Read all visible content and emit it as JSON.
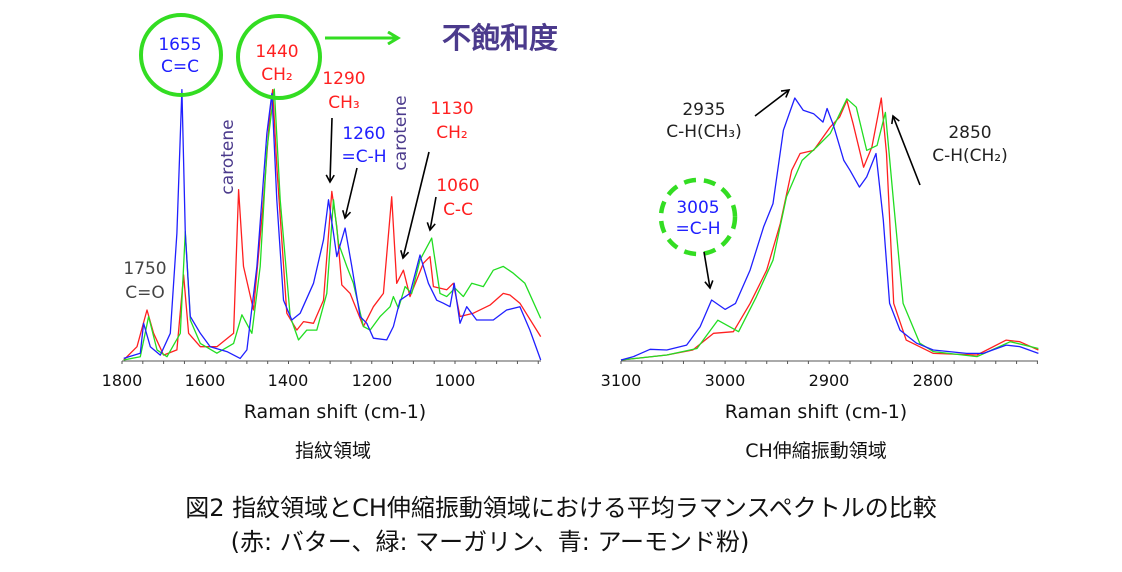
{
  "colors": {
    "butter": "#ff2020",
    "margarine": "#22dd22",
    "almond": "#2020ff",
    "purple": "#4b3a8c",
    "circle": "#33dd22"
  },
  "header": {
    "unsaturation": "不飽和度"
  },
  "caption": {
    "line1": "図2 指紋領域とCH伸縮振動領域における平均ラマンスペクトルの比較",
    "line2": "(赤: バター、緑: マーガリン、青: アーモンド粉)"
  },
  "chart_data": [
    {
      "type": "line",
      "title": "指紋領域",
      "xlabel": "Raman shift (cm-1)",
      "ylabel": "",
      "xlim": [
        1800,
        794
      ],
      "ylim": [
        0,
        100
      ],
      "xticks": [
        "1800",
        "1600",
        "1400",
        "1200",
        "1000"
      ],
      "grid": false,
      "annotations": [
        {
          "value": "1655",
          "assign": "C=C",
          "color": "blue"
        },
        {
          "value": "1440",
          "assign": "CH₂",
          "color": "red"
        },
        {
          "value": "1290",
          "assign": "CH₃",
          "color": "red"
        },
        {
          "value": "1260",
          "assign": "=C-H",
          "color": "blue"
        },
        {
          "value": "1130",
          "assign": "CH₂",
          "color": "red"
        },
        {
          "value": "1060",
          "assign": "C-C",
          "color": "red"
        },
        {
          "value": "1750",
          "assign": "C=O",
          "color": "gray"
        },
        {
          "text": "carotene"
        },
        {
          "text": "carotene"
        }
      ],
      "series": [
        {
          "name": "バター",
          "color": "#ff2020",
          "points": [
            [
              1796,
              0
            ],
            [
              1764,
              4.9
            ],
            [
              1740,
              18.4
            ],
            [
              1724,
              9.8
            ],
            [
              1700,
              1.8
            ],
            [
              1668,
              3.7
            ],
            [
              1652,
              31.3
            ],
            [
              1640,
              9.8
            ],
            [
              1612,
              4.9
            ],
            [
              1572,
              4.9
            ],
            [
              1532,
              9.8
            ],
            [
              1520,
              62.6
            ],
            [
              1508,
              34.4
            ],
            [
              1484,
              18.4
            ],
            [
              1460,
              58.9
            ],
            [
              1444,
              92
            ],
            [
              1438,
              99.4
            ],
            [
              1428,
              71.2
            ],
            [
              1404,
              17.2
            ],
            [
              1380,
              11
            ],
            [
              1364,
              14.1
            ],
            [
              1340,
              13.5
            ],
            [
              1316,
              22
            ],
            [
              1296,
              62
            ],
            [
              1284,
              49
            ],
            [
              1272,
              27.6
            ],
            [
              1252,
              24.5
            ],
            [
              1220,
              12.3
            ],
            [
              1196,
              19.6
            ],
            [
              1172,
              24.5
            ],
            [
              1152,
              60
            ],
            [
              1140,
              28.2
            ],
            [
              1124,
              33
            ],
            [
              1108,
              23.3
            ],
            [
              1076,
              35.6
            ],
            [
              1060,
              38
            ],
            [
              1052,
              27
            ],
            [
              1020,
              25.8
            ],
            [
              1004,
              28.2
            ],
            [
              988,
              16
            ],
            [
              956,
              17.2
            ],
            [
              916,
              20.2
            ],
            [
              884,
              24.5
            ],
            [
              868,
              23.9
            ],
            [
              844,
              20.9
            ],
            [
              794,
              8.6
            ]
          ]
        },
        {
          "name": "マーガリン",
          "color": "#22dd22",
          "points": [
            [
              1796,
              0
            ],
            [
              1756,
              1.2
            ],
            [
              1736,
              16
            ],
            [
              1716,
              3.7
            ],
            [
              1692,
              1.2
            ],
            [
              1660,
              9.8
            ],
            [
              1648,
              47.2
            ],
            [
              1636,
              14.7
            ],
            [
              1612,
              6.1
            ],
            [
              1572,
              2.5
            ],
            [
              1532,
              6.1
            ],
            [
              1512,
              16.6
            ],
            [
              1488,
              9.8
            ],
            [
              1468,
              34.4
            ],
            [
              1452,
              77.3
            ],
            [
              1434,
              99.6
            ],
            [
              1420,
              58.9
            ],
            [
              1396,
              16
            ],
            [
              1376,
              7.4
            ],
            [
              1356,
              11
            ],
            [
              1332,
              11
            ],
            [
              1308,
              24.5
            ],
            [
              1292,
              58.9
            ],
            [
              1280,
              42.9
            ],
            [
              1260,
              34.4
            ],
            [
              1244,
              28.2
            ],
            [
              1220,
              12.3
            ],
            [
              1204,
              11
            ],
            [
              1180,
              16
            ],
            [
              1156,
              19.6
            ],
            [
              1148,
              23.3
            ],
            [
              1136,
              19
            ],
            [
              1120,
              27
            ],
            [
              1104,
              24.5
            ],
            [
              1084,
              36.8
            ],
            [
              1056,
              44.8
            ],
            [
              1036,
              24.5
            ],
            [
              1020,
              23.3
            ],
            [
              1000,
              26.4
            ],
            [
              980,
              23.3
            ],
            [
              960,
              28.2
            ],
            [
              932,
              27
            ],
            [
              908,
              33
            ],
            [
              884,
              34.4
            ],
            [
              860,
              31.9
            ],
            [
              832,
              28.2
            ],
            [
              794,
              15.3
            ]
          ]
        },
        {
          "name": "アーモンド粉",
          "color": "#2020ff",
          "points": [
            [
              1796,
              0.6
            ],
            [
              1756,
              2.5
            ],
            [
              1748,
              13.5
            ],
            [
              1732,
              4.9
            ],
            [
              1708,
              1.8
            ],
            [
              1684,
              9.8
            ],
            [
              1668,
              46.6
            ],
            [
              1656,
              99.4
            ],
            [
              1648,
              46.6
            ],
            [
              1636,
              16
            ],
            [
              1612,
              9.8
            ],
            [
              1588,
              4.9
            ],
            [
              1548,
              3.1
            ],
            [
              1516,
              0.6
            ],
            [
              1500,
              3.7
            ],
            [
              1476,
              34.4
            ],
            [
              1452,
              83.4
            ],
            [
              1440,
              98
            ],
            [
              1428,
              58.9
            ],
            [
              1412,
              22
            ],
            [
              1392,
              14.7
            ],
            [
              1372,
              17.2
            ],
            [
              1340,
              28.2
            ],
            [
              1316,
              44.2
            ],
            [
              1304,
              58.9
            ],
            [
              1292,
              46.6
            ],
            [
              1284,
              38
            ],
            [
              1264,
              48.5
            ],
            [
              1248,
              34.4
            ],
            [
              1228,
              16
            ],
            [
              1212,
              13.5
            ],
            [
              1196,
              8
            ],
            [
              1164,
              7.4
            ],
            [
              1148,
              12.3
            ],
            [
              1132,
              22
            ],
            [
              1108,
              24.5
            ],
            [
              1084,
              38.6
            ],
            [
              1064,
              28.2
            ],
            [
              1044,
              22
            ],
            [
              1028,
              20.9
            ],
            [
              1012,
              19.6
            ],
            [
              1002,
              28.2
            ],
            [
              988,
              13.5
            ],
            [
              972,
              19.6
            ],
            [
              948,
              14.7
            ],
            [
              908,
              14.7
            ],
            [
              876,
              18.4
            ],
            [
              844,
              19.6
            ],
            [
              820,
              11
            ],
            [
              794,
              0
            ]
          ]
        }
      ]
    },
    {
      "type": "line",
      "title": "CH伸縮振動領域",
      "xlabel": "Raman shift (cm-1)",
      "ylabel": "",
      "xlim": [
        3100,
        2699
      ],
      "ylim": [
        0,
        100
      ],
      "xticks": [
        "3100",
        "3000",
        "2900",
        "2800"
      ],
      "grid": false,
      "annotations": [
        {
          "value": "2935",
          "assign": "C-H(CH₃)",
          "color": "black"
        },
        {
          "value": "2850",
          "assign": "C-H(CH₂)",
          "color": "black"
        },
        {
          "value": "3005",
          "assign": "=C-H",
          "color": "blue"
        }
      ],
      "series": [
        {
          "name": "バター",
          "color": "#ff2020",
          "points": [
            [
              3100,
              0
            ],
            [
              3056,
              1.9
            ],
            [
              3031,
              3.8
            ],
            [
              3011,
              10.2
            ],
            [
              2992,
              10.8
            ],
            [
              2976,
              21.6
            ],
            [
              2960,
              34.3
            ],
            [
              2947,
              52.1
            ],
            [
              2936,
              72.4
            ],
            [
              2928,
              78.8
            ],
            [
              2915,
              80
            ],
            [
              2899,
              88.9
            ],
            [
              2890,
              92.7
            ],
            [
              2883,
              99.1
            ],
            [
              2877,
              90.2
            ],
            [
              2867,
              73.6
            ],
            [
              2859,
              81.3
            ],
            [
              2850,
              100
            ],
            [
              2845,
              78.8
            ],
            [
              2838,
              21.6
            ],
            [
              2826,
              7.6
            ],
            [
              2800,
              2.5
            ],
            [
              2758,
              1.9
            ],
            [
              2730,
              7.6
            ],
            [
              2717,
              7
            ],
            [
              2699,
              3.8
            ]
          ]
        },
        {
          "name": "マーガリン",
          "color": "#22dd22",
          "points": [
            [
              3100,
              0
            ],
            [
              3056,
              1.9
            ],
            [
              3027,
              4.4
            ],
            [
              3007,
              15.2
            ],
            [
              2987,
              10.8
            ],
            [
              2970,
              24.1
            ],
            [
              2954,
              38.1
            ],
            [
              2941,
              62.3
            ],
            [
              2926,
              76.2
            ],
            [
              2912,
              81.3
            ],
            [
              2899,
              86.4
            ],
            [
              2883,
              99.7
            ],
            [
              2874,
              96.5
            ],
            [
              2864,
              80
            ],
            [
              2854,
              81.9
            ],
            [
              2846,
              94.5
            ],
            [
              2838,
              59.7
            ],
            [
              2829,
              21.6
            ],
            [
              2813,
              6.4
            ],
            [
              2800,
              3.2
            ],
            [
              2758,
              1.3
            ],
            [
              2726,
              7
            ],
            [
              2699,
              4.4
            ]
          ]
        },
        {
          "name": "アーモンド粉",
          "color": "#2020ff",
          "points": [
            [
              3100,
              0
            ],
            [
              3088,
              1.3
            ],
            [
              3072,
              4.1
            ],
            [
              3056,
              3.8
            ],
            [
              3037,
              5.7
            ],
            [
              3024,
              12.7
            ],
            [
              3013,
              22.9
            ],
            [
              3000,
              19.3
            ],
            [
              2990,
              21.6
            ],
            [
              2976,
              34.3
            ],
            [
              2963,
              50.8
            ],
            [
              2954,
              59.7
            ],
            [
              2944,
              87.7
            ],
            [
              2933,
              100
            ],
            [
              2925,
              95.3
            ],
            [
              2915,
              94
            ],
            [
              2906,
              90.8
            ],
            [
              2902,
              96
            ],
            [
              2896,
              89.6
            ],
            [
              2886,
              76.2
            ],
            [
              2880,
              72.4
            ],
            [
              2871,
              66
            ],
            [
              2864,
              69.9
            ],
            [
              2855,
              78.8
            ],
            [
              2848,
              53.4
            ],
            [
              2842,
              21.6
            ],
            [
              2832,
              11.4
            ],
            [
              2816,
              6.4
            ],
            [
              2800,
              3.8
            ],
            [
              2768,
              2.5
            ],
            [
              2752,
              2.5
            ],
            [
              2730,
              5.7
            ],
            [
              2717,
              5.1
            ],
            [
              2699,
              2.5
            ]
          ]
        }
      ]
    }
  ]
}
